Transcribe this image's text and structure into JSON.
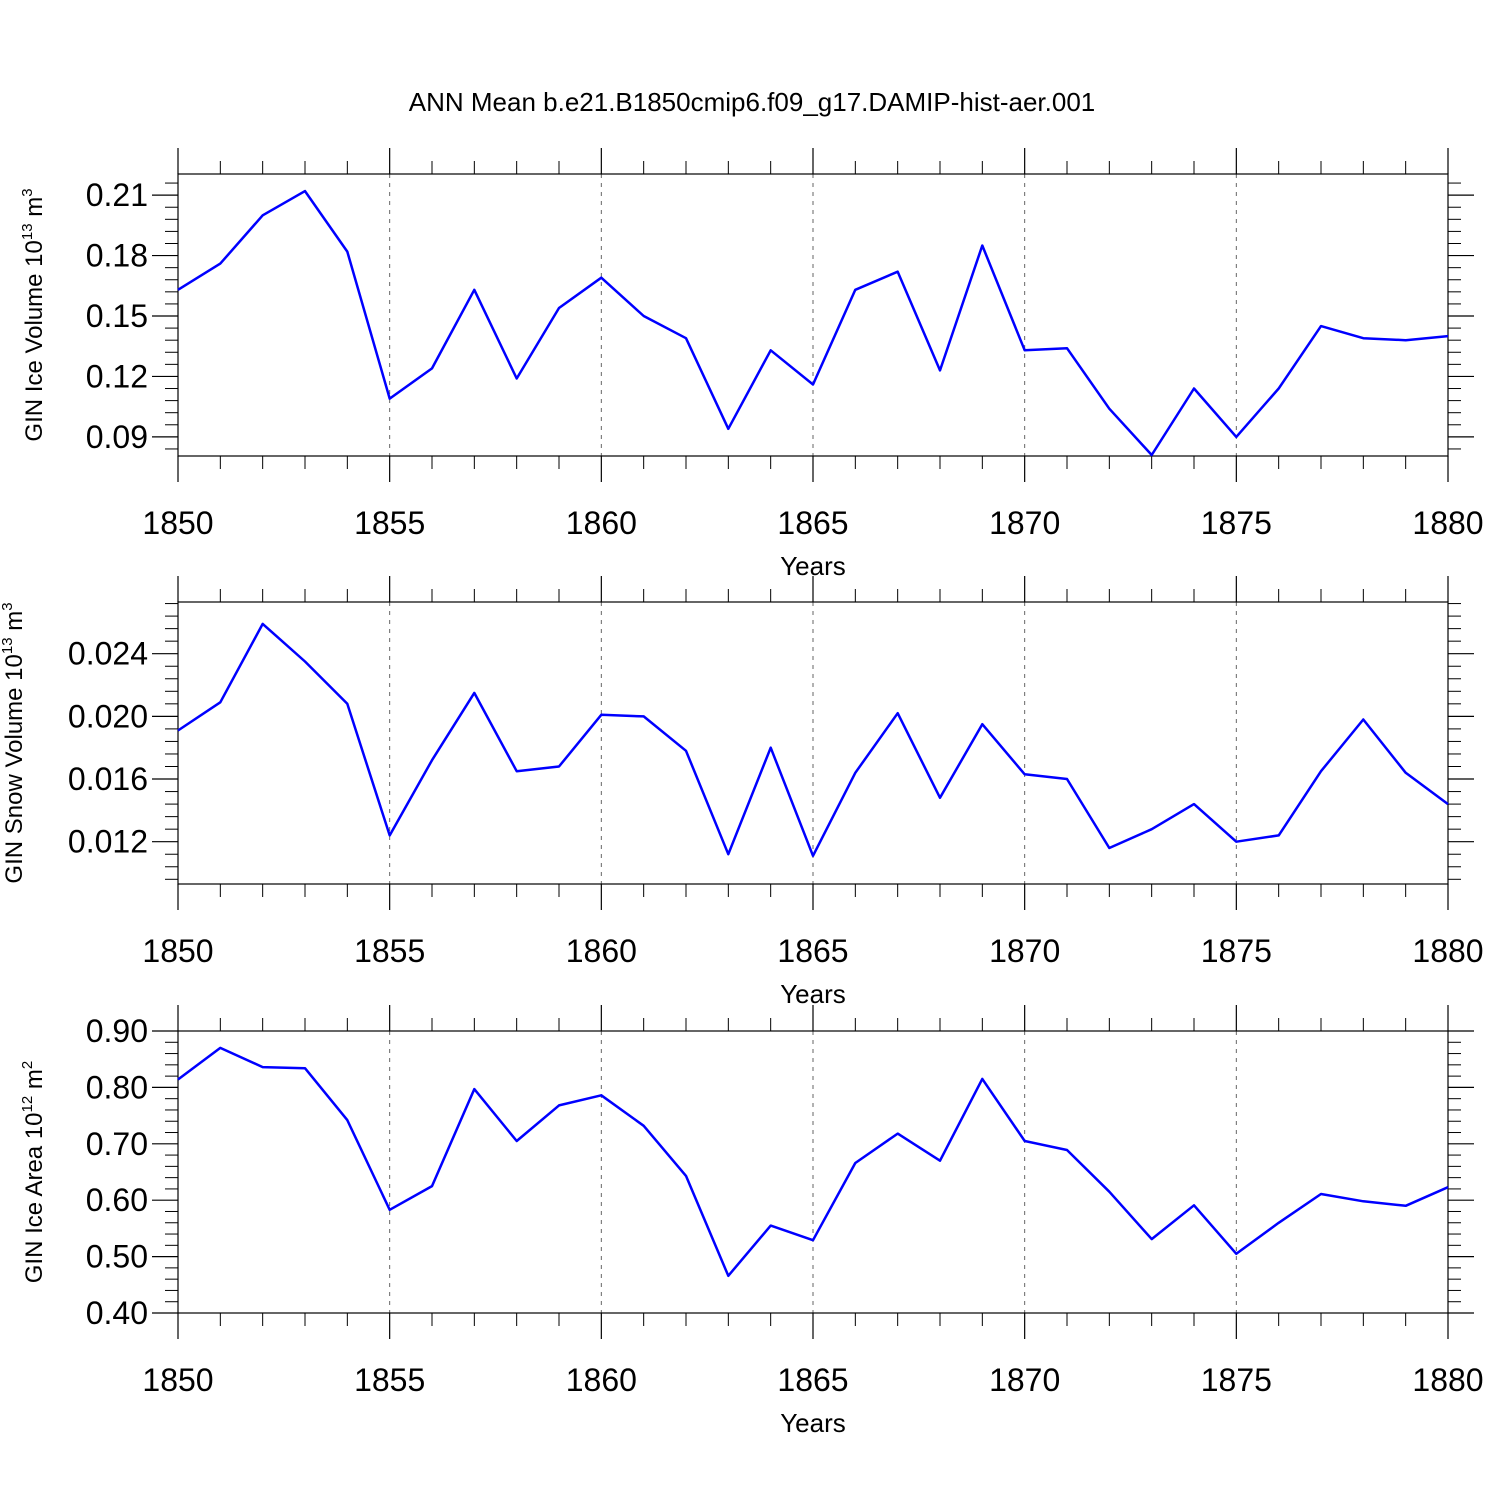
{
  "title": "ANN Mean b.e21.B1850cmip6.f09_g17.DAMIP-hist-aer.001",
  "line_color": "#0000ff",
  "chart_data": [
    {
      "type": "line",
      "ylabel": "GIN Ice Volume",
      "ylabel_scale": "10",
      "ylabel_exp": "13",
      "ylabel_unit": "m",
      "ylabel_unit_exp": "3",
      "xlabel": "Years",
      "xlim": [
        1850,
        1880
      ],
      "ylim": [
        0.0805,
        0.2205
      ],
      "yticks": [
        "0.09",
        "0.12",
        "0.15",
        "0.18",
        "0.21"
      ],
      "xticks": [
        "1850",
        "1855",
        "1860",
        "1865",
        "1870",
        "1875",
        "1880"
      ],
      "grid": "vertical dashed at major x ticks",
      "x": [
        1850,
        1851,
        1852,
        1853,
        1854,
        1855,
        1856,
        1857,
        1858,
        1859,
        1860,
        1861,
        1862,
        1863,
        1864,
        1865,
        1866,
        1867,
        1868,
        1869,
        1870,
        1871,
        1872,
        1873,
        1874,
        1875,
        1876,
        1877,
        1878,
        1879,
        1880
      ],
      "y": [
        0.163,
        0.176,
        0.2,
        0.212,
        0.182,
        0.109,
        0.124,
        0.163,
        0.119,
        0.154,
        0.169,
        0.15,
        0.139,
        0.094,
        0.133,
        0.116,
        0.163,
        0.172,
        0.123,
        0.185,
        0.133,
        0.134,
        0.104,
        0.081,
        0.114,
        0.09,
        0.114,
        0.145,
        0.139,
        0.138,
        0.14
      ]
    },
    {
      "type": "line",
      "ylabel": "GIN Snow Volume",
      "ylabel_scale": "10",
      "ylabel_exp": "13",
      "ylabel_unit": "m",
      "ylabel_unit_exp": "3",
      "xlabel": "Years",
      "xlim": [
        1850,
        1880
      ],
      "ylim": [
        0.0093,
        0.0273
      ],
      "yticks": [
        "0.012",
        "0.016",
        "0.020",
        "0.024"
      ],
      "xticks": [
        "1850",
        "1855",
        "1860",
        "1865",
        "1870",
        "1875",
        "1880"
      ],
      "grid": "vertical dashed at major x ticks",
      "x": [
        1850,
        1851,
        1852,
        1853,
        1854,
        1855,
        1856,
        1857,
        1858,
        1859,
        1860,
        1861,
        1862,
        1863,
        1864,
        1865,
        1866,
        1867,
        1868,
        1869,
        1870,
        1871,
        1872,
        1873,
        1874,
        1875,
        1876,
        1877,
        1878,
        1879,
        1880
      ],
      "y": [
        0.0191,
        0.0209,
        0.0259,
        0.0235,
        0.0208,
        0.0124,
        0.0172,
        0.0215,
        0.0165,
        0.0168,
        0.0201,
        0.02,
        0.0178,
        0.0112,
        0.018,
        0.0111,
        0.0164,
        0.0202,
        0.0148,
        0.0195,
        0.0163,
        0.016,
        0.0116,
        0.0128,
        0.0144,
        0.012,
        0.0124,
        0.0165,
        0.0198,
        0.0164,
        0.0144
      ]
    },
    {
      "type": "line",
      "ylabel": "GIN Ice Area",
      "ylabel_scale": "10",
      "ylabel_exp": "12",
      "ylabel_unit": "m",
      "ylabel_unit_exp": "2",
      "xlabel": "Years",
      "xlim": [
        1850,
        1880
      ],
      "ylim": [
        0.4,
        0.9
      ],
      "yticks": [
        "0.40",
        "0.50",
        "0.60",
        "0.70",
        "0.80",
        "0.90"
      ],
      "xticks": [
        "1850",
        "1855",
        "1860",
        "1865",
        "1870",
        "1875",
        "1880"
      ],
      "grid": "vertical dashed at major x ticks",
      "x": [
        1850,
        1851,
        1852,
        1853,
        1854,
        1855,
        1856,
        1857,
        1858,
        1859,
        1860,
        1861,
        1862,
        1863,
        1864,
        1865,
        1866,
        1867,
        1868,
        1869,
        1870,
        1871,
        1872,
        1873,
        1874,
        1875,
        1876,
        1877,
        1878,
        1879,
        1880
      ],
      "y": [
        0.814,
        0.87,
        0.836,
        0.834,
        0.742,
        0.583,
        0.625,
        0.797,
        0.705,
        0.768,
        0.786,
        0.732,
        0.643,
        0.466,
        0.555,
        0.529,
        0.666,
        0.718,
        0.67,
        0.815,
        0.705,
        0.689,
        0.615,
        0.531,
        0.591,
        0.505,
        0.56,
        0.611,
        0.598,
        0.59,
        0.623
      ]
    }
  ]
}
